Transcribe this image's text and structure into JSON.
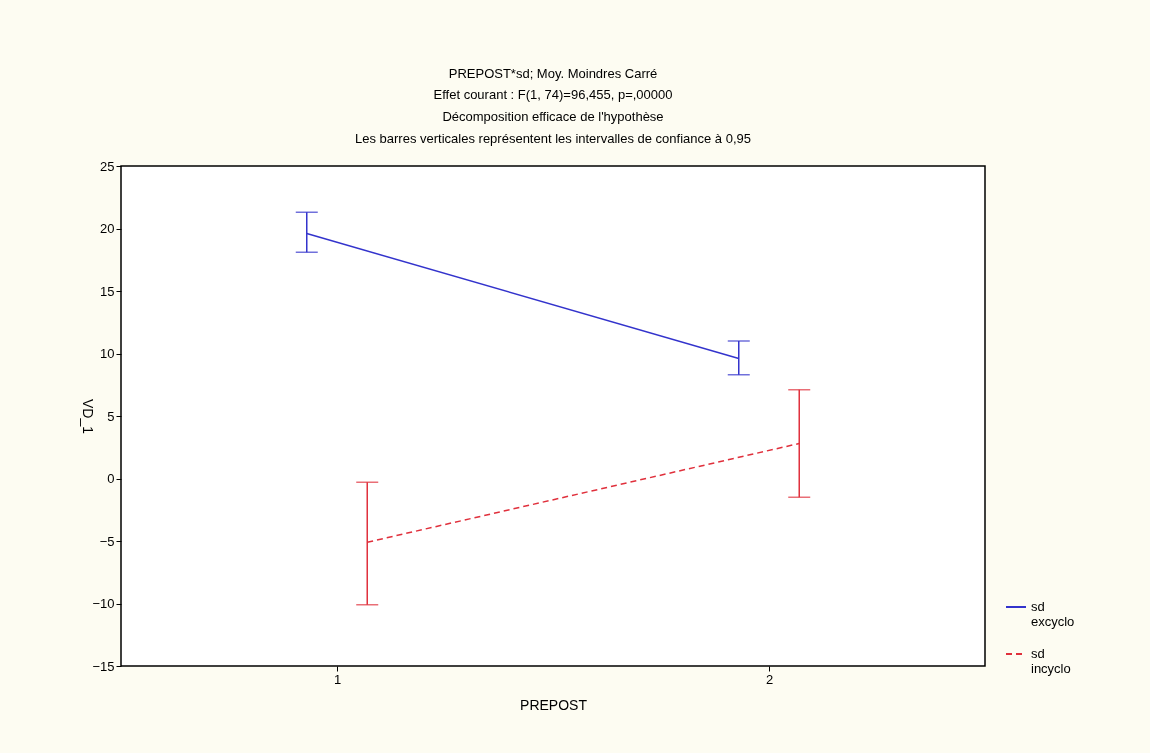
{
  "chart_data": {
    "type": "line",
    "title": "PREPOST*sd; Moy. Moindres Carré",
    "subtitle": "Effet courant : F(1, 74)=96,455, p=,00000\nDécomposition efficace de l'hypothèse\nLes barres verticales représentent les intervalles de confiance à 0,95",
    "xlabel": "PREPOST",
    "ylabel": "VD_1",
    "xlim": [
      0.5,
      2.5
    ],
    "xticks": [
      1,
      2
    ],
    "ylim": [
      -15,
      25
    ],
    "yticks": [
      -15,
      -10,
      -5,
      0,
      5,
      10,
      15,
      20,
      25
    ],
    "grid": false,
    "legend": "bottom right",
    "marker": "none",
    "series": [
      {
        "name": "sd excyclo",
        "color": "#3333cc",
        "line_style": "solid",
        "x": [
          0.93,
          1.93
        ],
        "values": [
          19.6,
          9.6
        ],
        "errors": [
          [
            18.1,
            21.3
          ],
          [
            8.3,
            11.0
          ]
        ]
      },
      {
        "name": "sd incyclo",
        "color": "#e0303c",
        "line_style": "dashed",
        "x": [
          1.07,
          2.07
        ],
        "values": [
          -5.1,
          2.8
        ],
        "errors": [
          [
            -10.1,
            -0.3
          ],
          [
            -1.5,
            7.1
          ]
        ]
      }
    ]
  }
}
